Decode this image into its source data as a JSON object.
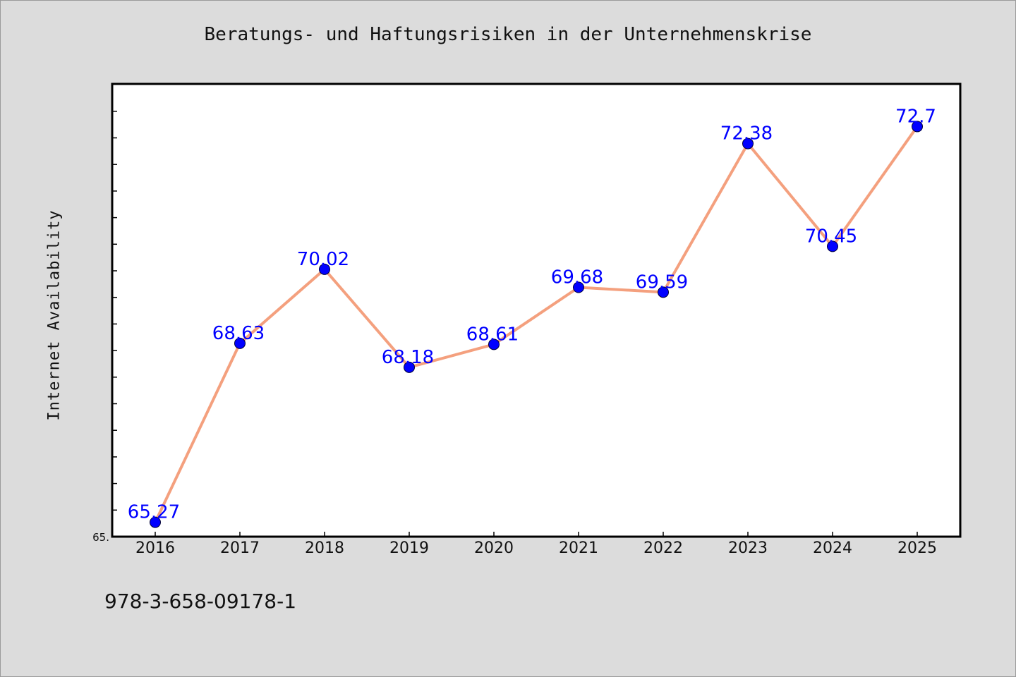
{
  "chart_data": {
    "type": "line",
    "title": "Beratungs- und Haftungsrisiken in der Unternehmenskrise",
    "xlabel": "",
    "ylabel": "Internet Availability",
    "categories": [
      "2016",
      "2017",
      "2018",
      "2019",
      "2020",
      "2021",
      "2022",
      "2023",
      "2024",
      "2025"
    ],
    "series": [
      {
        "values": [
          65.27,
          68.63,
          70.02,
          68.18,
          68.61,
          69.68,
          69.59,
          72.38,
          70.45,
          72.7
        ],
        "labels": [
          "65.27",
          "68.63",
          "70.02",
          "68.18",
          "68.61",
          "69.68",
          "69.59",
          "72.38",
          "70.45",
          "72.7"
        ],
        "line_color": "#f4a07e",
        "marker_color": "#0000ff"
      }
    ],
    "y_tick_label": "65.",
    "ylim": [
      65.0,
      73.5
    ],
    "grid": false,
    "legend": "none"
  },
  "footer": {
    "id_text": "978-3-658-09178-1"
  }
}
